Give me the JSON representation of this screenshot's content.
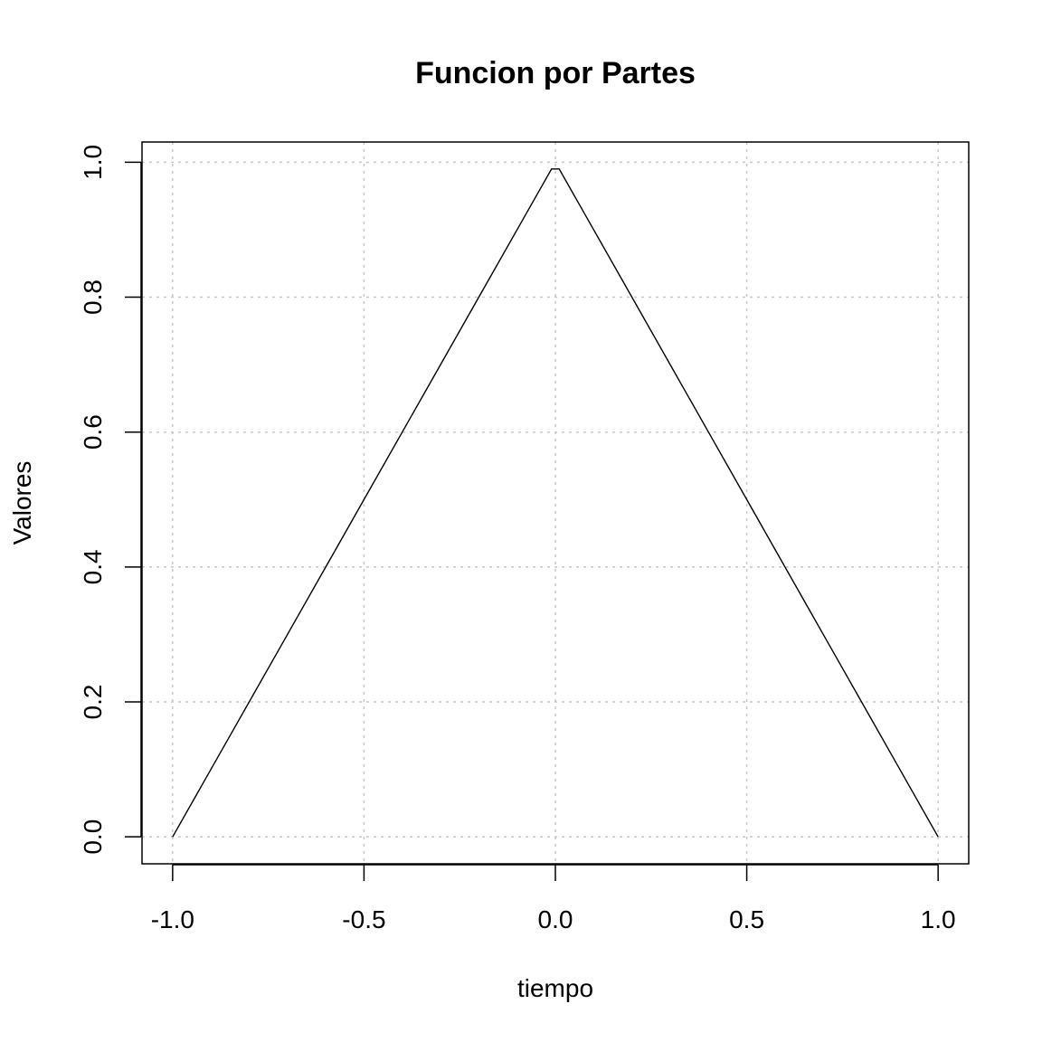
{
  "chart_data": {
    "type": "line",
    "title": "Funcion por Partes",
    "xlabel": "tiempo",
    "ylabel": "Valores",
    "xlim": [
      -1.08,
      1.08
    ],
    "ylim": [
      -0.04,
      1.03
    ],
    "x_ticks": [
      -1.0,
      -0.5,
      0.0,
      0.5,
      1.0
    ],
    "x_tick_labels": [
      "-1.0",
      "-0.5",
      "0.0",
      "0.5",
      "1.0"
    ],
    "y_ticks": [
      0.0,
      0.2,
      0.4,
      0.6,
      0.8,
      1.0
    ],
    "y_tick_labels": [
      "0.0",
      "0.2",
      "0.4",
      "0.6",
      "0.8",
      "1.0"
    ],
    "grid": true,
    "series": [
      {
        "color": "#000000",
        "x": [
          -1.0,
          -0.9,
          -0.8,
          -0.7,
          -0.6,
          -0.5,
          -0.4,
          -0.3,
          -0.2,
          -0.1,
          -0.01,
          0.01,
          0.1,
          0.2,
          0.3,
          0.4,
          0.5,
          0.6,
          0.7,
          0.8,
          0.9,
          1.0
        ],
        "y": [
          0.0,
          0.1,
          0.2,
          0.3,
          0.4,
          0.5,
          0.6,
          0.7,
          0.8,
          0.9,
          0.99,
          0.99,
          0.9,
          0.8,
          0.7,
          0.6,
          0.5,
          0.4,
          0.3,
          0.2,
          0.1,
          0.0
        ]
      }
    ]
  }
}
